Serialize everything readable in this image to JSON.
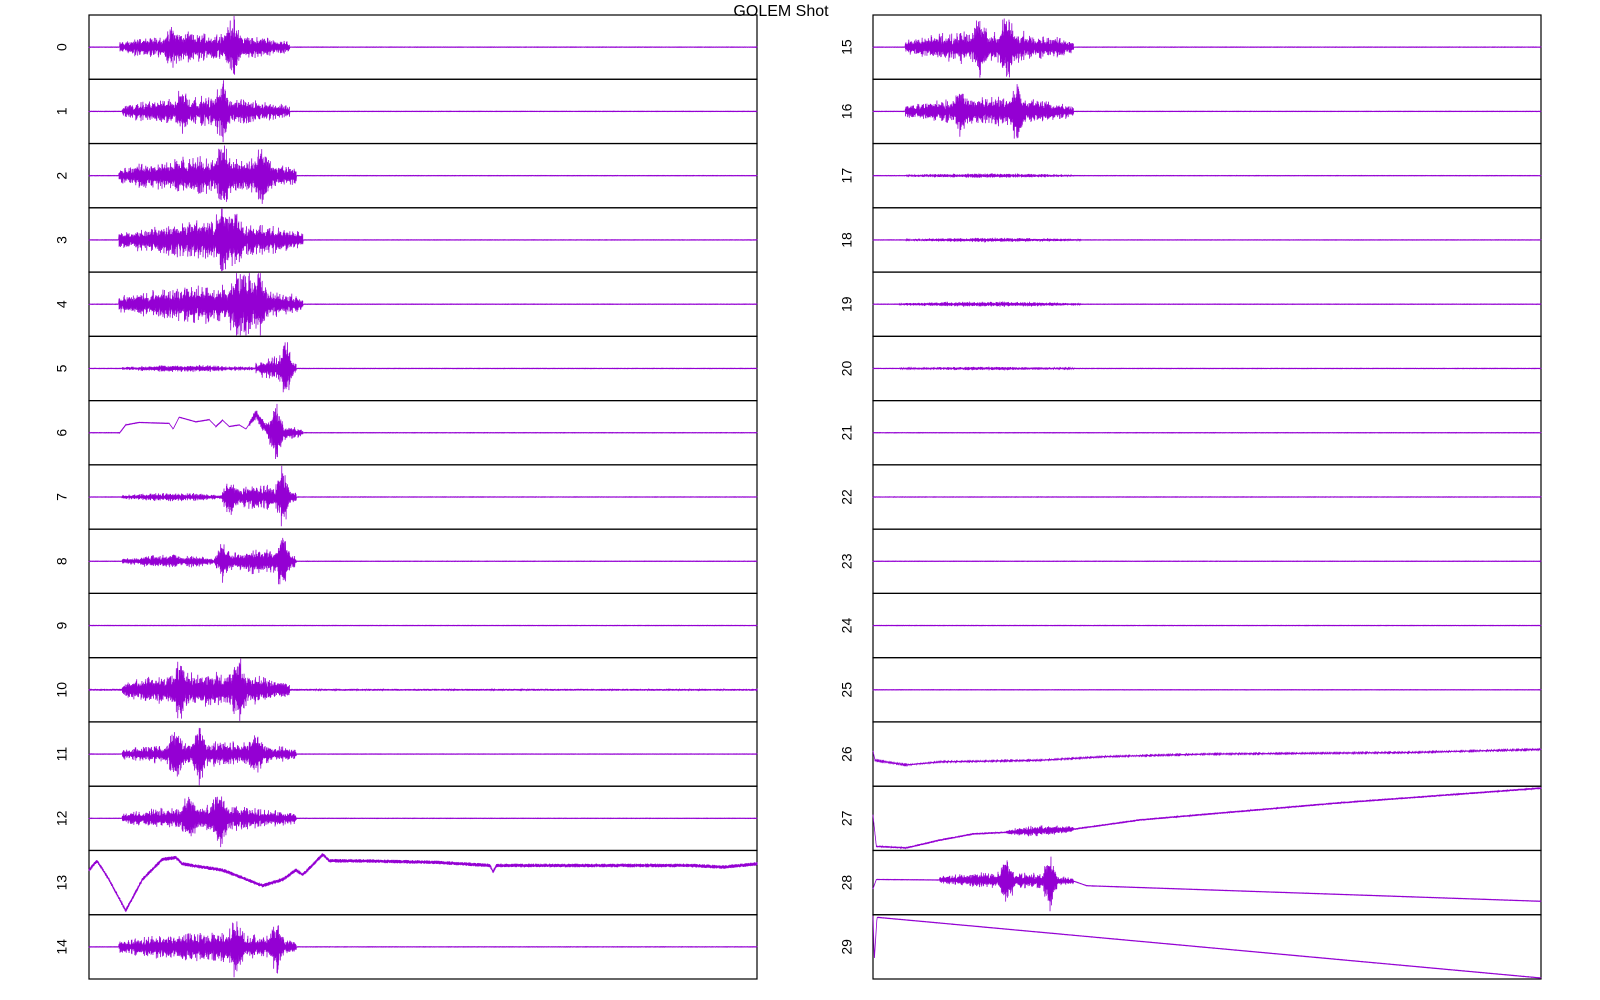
{
  "chart_data": {
    "type": "line",
    "title": "GOLEM Shot",
    "layout": "2 columns x 15 stacked panels",
    "grid": false,
    "line_color": "#9400D3",
    "time_range": [
      0,
      1
    ],
    "value_range": [
      -1,
      1
    ],
    "channels": [
      {
        "label": "0",
        "bursts": [
          [
            0.046,
            0.3,
            0.35
          ]
        ],
        "spikes": [
          [
            0.215,
            0.9
          ],
          [
            0.125,
            0.45
          ]
        ]
      },
      {
        "label": "1",
        "bursts": [
          [
            0.05,
            0.3,
            0.35
          ]
        ],
        "spikes": [
          [
            0.2,
            0.95
          ],
          [
            0.14,
            0.5
          ]
        ]
      },
      {
        "label": "2",
        "bursts": [
          [
            0.045,
            0.31,
            0.45
          ]
        ],
        "spikes": [
          [
            0.2,
            0.9
          ],
          [
            0.26,
            0.95
          ]
        ]
      },
      {
        "label": "3",
        "bursts": [
          [
            0.045,
            0.32,
            0.45
          ]
        ],
        "spikes": [
          [
            0.2,
            0.95
          ],
          [
            0.22,
            0.8
          ]
        ]
      },
      {
        "label": "4",
        "bursts": [
          [
            0.045,
            0.32,
            0.45
          ]
        ],
        "spikes": [
          [
            0.22,
            0.95
          ],
          [
            0.235,
            0.9
          ],
          [
            0.255,
            0.9
          ]
        ]
      },
      {
        "label": "5",
        "bursts": [
          [
            0.05,
            0.25,
            0.08
          ],
          [
            0.25,
            0.31,
            0.3
          ]
        ],
        "spikes": [
          [
            0.295,
            0.95
          ]
        ]
      },
      {
        "label": "6",
        "drift": [
          [
            0,
            0
          ],
          [
            0.046,
            0
          ],
          [
            0.055,
            0.25
          ],
          [
            0.075,
            0.33
          ],
          [
            0.12,
            0.3
          ],
          [
            0.126,
            0.12
          ],
          [
            0.135,
            0.5
          ],
          [
            0.16,
            0.35
          ],
          [
            0.18,
            0.42
          ],
          [
            0.19,
            0.2
          ],
          [
            0.2,
            0.4
          ],
          [
            0.21,
            0.2
          ],
          [
            0.225,
            0.25
          ],
          [
            0.235,
            0.12
          ],
          [
            0.25,
            0.6
          ],
          [
            0.26,
            0.25
          ],
          [
            0.27,
            0.05
          ],
          [
            0.29,
            0
          ],
          [
            0.32,
            0
          ],
          [
            1,
            0
          ]
        ],
        "bursts": [
          [
            0.24,
            0.32,
            0.2
          ]
        ],
        "spikes": [
          [
            0.28,
            1.0
          ]
        ]
      },
      {
        "label": "7",
        "bursts": [
          [
            0.05,
            0.2,
            0.1
          ],
          [
            0.2,
            0.31,
            0.3
          ]
        ],
        "spikes": [
          [
            0.29,
            0.95
          ],
          [
            0.21,
            0.5
          ]
        ]
      },
      {
        "label": "8",
        "bursts": [
          [
            0.05,
            0.2,
            0.15
          ],
          [
            0.2,
            0.31,
            0.3
          ]
        ],
        "spikes": [
          [
            0.29,
            0.95
          ],
          [
            0.2,
            0.7
          ]
        ]
      },
      {
        "label": "9"
      },
      {
        "label": "10",
        "bursts": [
          [
            0.05,
            0.3,
            0.4
          ]
        ],
        "spikes": [
          [
            0.135,
            0.8
          ],
          [
            0.225,
            0.95
          ]
        ],
        "noise": 0.03
      },
      {
        "label": "11",
        "bursts": [
          [
            0.05,
            0.31,
            0.3
          ]
        ],
        "spikes": [
          [
            0.13,
            0.8
          ],
          [
            0.165,
            0.95
          ],
          [
            0.25,
            0.7
          ]
        ]
      },
      {
        "label": "12",
        "bursts": [
          [
            0.05,
            0.31,
            0.3
          ]
        ],
        "spikes": [
          [
            0.195,
            0.95
          ],
          [
            0.15,
            0.6
          ]
        ]
      },
      {
        "label": "13",
        "drift": [
          [
            0,
            0.4
          ],
          [
            0.012,
            0.7
          ],
          [
            0.03,
            0.1
          ],
          [
            0.055,
            -0.9
          ],
          [
            0.08,
            0.1
          ],
          [
            0.11,
            0.75
          ],
          [
            0.13,
            0.8
          ],
          [
            0.14,
            0.6
          ],
          [
            0.2,
            0.4
          ],
          [
            0.26,
            -0.1
          ],
          [
            0.29,
            0.1
          ],
          [
            0.31,
            0.4
          ],
          [
            0.32,
            0.25
          ],
          [
            0.35,
            0.9
          ],
          [
            0.36,
            0.7
          ],
          [
            0.4,
            0.7
          ],
          [
            0.52,
            0.65
          ],
          [
            0.6,
            0.55
          ],
          [
            0.605,
            0.35
          ],
          [
            0.61,
            0.55
          ],
          [
            0.9,
            0.55
          ],
          [
            0.95,
            0.5
          ],
          [
            1,
            0.6
          ]
        ],
        "noise": 0.06
      },
      {
        "label": "14",
        "bursts": [
          [
            0.045,
            0.31,
            0.35
          ]
        ],
        "spikes": [
          [
            0.22,
            0.95
          ],
          [
            0.28,
            0.8
          ]
        ]
      },
      {
        "label": "15",
        "bursts": [
          [
            0.048,
            0.3,
            0.4
          ]
        ],
        "spikes": [
          [
            0.2,
            0.95
          ],
          [
            0.16,
            0.6
          ]
        ]
      },
      {
        "label": "16",
        "bursts": [
          [
            0.048,
            0.3,
            0.35
          ]
        ],
        "spikes": [
          [
            0.215,
            0.95
          ],
          [
            0.13,
            0.5
          ]
        ]
      },
      {
        "label": "17",
        "bursts": [
          [
            0.05,
            0.3,
            0.05
          ]
        ]
      },
      {
        "label": "18",
        "bursts": [
          [
            0.05,
            0.31,
            0.05
          ]
        ]
      },
      {
        "label": "19",
        "bursts": [
          [
            0.04,
            0.31,
            0.06
          ]
        ]
      },
      {
        "label": "20",
        "bursts": [
          [
            0.04,
            0.3,
            0.04
          ]
        ]
      },
      {
        "label": "21"
      },
      {
        "label": "22"
      },
      {
        "label": "23"
      },
      {
        "label": "24"
      },
      {
        "label": "25"
      },
      {
        "label": "26",
        "drift": [
          [
            0,
            0.1
          ],
          [
            0.003,
            -0.2
          ],
          [
            0.05,
            -0.35
          ],
          [
            0.1,
            -0.25
          ],
          [
            0.25,
            -0.2
          ],
          [
            0.35,
            -0.08
          ],
          [
            0.5,
            0
          ],
          [
            0.8,
            0.05
          ],
          [
            1,
            0.15
          ]
        ],
        "noise": 0.02
      },
      {
        "label": "27",
        "drift": [
          [
            0,
            0.1
          ],
          [
            0.005,
            -0.9
          ],
          [
            0.05,
            -0.95
          ],
          [
            0.1,
            -0.7
          ],
          [
            0.15,
            -0.5
          ],
          [
            0.3,
            -0.35
          ],
          [
            0.4,
            -0.05
          ],
          [
            0.7,
            0.5
          ],
          [
            1,
            0.97
          ]
        ],
        "noise": 0.03,
        "bursts": [
          [
            0.2,
            0.3,
            0.1
          ]
        ]
      },
      {
        "label": "28",
        "drift": [
          [
            0,
            -0.2
          ],
          [
            0.005,
            0.1
          ],
          [
            0.3,
            0.05
          ],
          [
            0.32,
            -0.1
          ],
          [
            1,
            -0.6
          ]
        ],
        "bursts": [
          [
            0.1,
            0.3,
            0.2
          ]
        ],
        "spikes": [
          [
            0.2,
            0.9
          ],
          [
            0.265,
            0.95
          ]
        ]
      },
      {
        "label": "29",
        "drift": [
          [
            0,
            1.0
          ],
          [
            0.002,
            -0.4
          ],
          [
            0.006,
            0.95
          ],
          [
            1,
            -1.0
          ]
        ]
      }
    ]
  }
}
